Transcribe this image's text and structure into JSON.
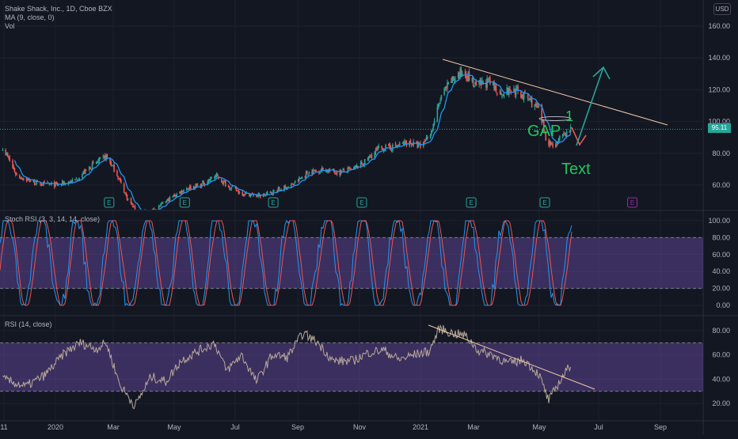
{
  "chart_title": "Shake Shack, Inc., 1D, Cboe BZX",
  "indicators": {
    "ma_label": "MA (9, close, 0)",
    "vol_label": "Vol",
    "stoch_label": "Stoch RSI (3, 3, 14, 14, close)",
    "rsi_label": "RSI (14, close)"
  },
  "currency": "USD",
  "last_price": "95.11",
  "annotations": {
    "gap_text": "GAP",
    "one_text": "1",
    "text_label": "Text"
  },
  "earnings_marker": "E",
  "colors": {
    "background": "#131722",
    "up": "#26a69a",
    "down": "#ef5350",
    "ma": "#2196f3",
    "rsi_band": "#7e57c2",
    "rsi_line": "#b8a99a",
    "trendline": "#f0c9a8",
    "annotation_green": "#22c55e",
    "arrow_teal": "#26a69a"
  },
  "chart_data": [
    {
      "type": "candlestick",
      "title": "Shake Shack, Inc., 1D, Cboe BZX",
      "x_ticks": [
        "11",
        "2020",
        "Mar",
        "May",
        "Jul",
        "Sep",
        "Nov",
        "2021",
        "Mar",
        "May",
        "Jul",
        "Sep"
      ],
      "y_ticks": [
        "60.00",
        "80.00",
        "100.00",
        "120.00",
        "140.00",
        "160.00"
      ],
      "ylim": [
        48,
        170
      ],
      "series_points": [
        [
          "2019-11-08",
          84
        ],
        [
          "2019-11-22",
          66
        ],
        [
          "2019-12-13",
          61
        ],
        [
          "2020-01-01",
          60
        ],
        [
          "2020-01-20",
          63
        ],
        [
          "2020-02-05",
          72
        ],
        [
          "2020-02-20",
          78
        ],
        [
          "2020-03-01",
          68
        ],
        [
          "2020-03-12",
          52
        ],
        [
          "2020-03-23",
          42
        ],
        [
          "2020-04-10",
          45
        ],
        [
          "2020-04-25",
          52
        ],
        [
          "2020-05-10",
          58
        ],
        [
          "2020-05-25",
          60
        ],
        [
          "2020-06-09",
          66
        ],
        [
          "2020-06-20",
          60
        ],
        [
          "2020-07-05",
          55
        ],
        [
          "2020-07-25",
          53
        ],
        [
          "2020-08-10",
          57
        ],
        [
          "2020-08-25",
          60
        ],
        [
          "2020-09-10",
          68
        ],
        [
          "2020-09-25",
          70
        ],
        [
          "2020-10-10",
          68
        ],
        [
          "2020-10-25",
          70
        ],
        [
          "2020-11-05",
          74
        ],
        [
          "2020-11-20",
          83
        ],
        [
          "2020-12-05",
          84
        ],
        [
          "2020-12-20",
          87
        ],
        [
          "2021-01-01",
          84
        ],
        [
          "2021-01-12",
          94
        ],
        [
          "2021-01-22",
          116
        ],
        [
          "2021-02-03",
          127
        ],
        [
          "2021-02-14",
          132
        ],
        [
          "2021-02-25",
          122
        ],
        [
          "2021-03-10",
          125
        ],
        [
          "2021-03-22",
          118
        ],
        [
          "2021-04-05",
          120
        ],
        [
          "2021-04-20",
          114
        ],
        [
          "2021-04-30",
          107
        ],
        [
          "2021-05-08",
          88
        ],
        [
          "2021-05-15",
          85
        ],
        [
          "2021-05-25",
          91
        ],
        [
          "2021-06-01",
          95
        ]
      ],
      "last_price": 95.11,
      "earnings_dates": [
        "2020-02-23",
        "2020-05-09",
        "2020-08-06",
        "2020-11-03",
        "2021-02-21",
        "2021-05-06",
        "2021-08-02"
      ]
    },
    {
      "type": "line",
      "title": "Stoch RSI (3, 3, 14, 14, close)",
      "y_ticks": [
        "0.00",
        "20.00",
        "40.00",
        "60.00",
        "80.00",
        "100.00"
      ],
      "ylim": [
        -5,
        105
      ],
      "bands": [
        20,
        80
      ]
    },
    {
      "type": "line",
      "title": "RSI (14, close)",
      "y_ticks": [
        "20.00",
        "40.00",
        "60.00",
        "80.00"
      ],
      "ylim": [
        12,
        88
      ],
      "bands": [
        30,
        70
      ],
      "series_points": [
        [
          "2019-11-08",
          40
        ],
        [
          "2019-12-01",
          34
        ],
        [
          "2019-12-20",
          43
        ],
        [
          "2020-01-10",
          62
        ],
        [
          "2020-01-25",
          70
        ],
        [
          "2020-02-10",
          65
        ],
        [
          "2020-02-20",
          70
        ],
        [
          "2020-03-05",
          35
        ],
        [
          "2020-03-20",
          18
        ],
        [
          "2020-04-05",
          42
        ],
        [
          "2020-04-20",
          38
        ],
        [
          "2020-05-05",
          55
        ],
        [
          "2020-05-20",
          62
        ],
        [
          "2020-06-08",
          70
        ],
        [
          "2020-06-20",
          47
        ],
        [
          "2020-07-05",
          60
        ],
        [
          "2020-07-20",
          38
        ],
        [
          "2020-08-05",
          60
        ],
        [
          "2020-08-20",
          58
        ],
        [
          "2020-09-05",
          78
        ],
        [
          "2020-09-20",
          70
        ],
        [
          "2020-10-05",
          55
        ],
        [
          "2020-10-25",
          55
        ],
        [
          "2020-11-10",
          62
        ],
        [
          "2020-11-25",
          64
        ],
        [
          "2020-12-10",
          56
        ],
        [
          "2020-12-25",
          60
        ],
        [
          "2021-01-10",
          63
        ],
        [
          "2021-01-20",
          82
        ],
        [
          "2021-02-01",
          78
        ],
        [
          "2021-02-15",
          76
        ],
        [
          "2021-03-01",
          63
        ],
        [
          "2021-03-15",
          60
        ],
        [
          "2021-03-30",
          53
        ],
        [
          "2021-04-15",
          56
        ],
        [
          "2021-04-30",
          44
        ],
        [
          "2021-05-10",
          22
        ],
        [
          "2021-05-20",
          37
        ],
        [
          "2021-06-01",
          52
        ]
      ]
    }
  ]
}
